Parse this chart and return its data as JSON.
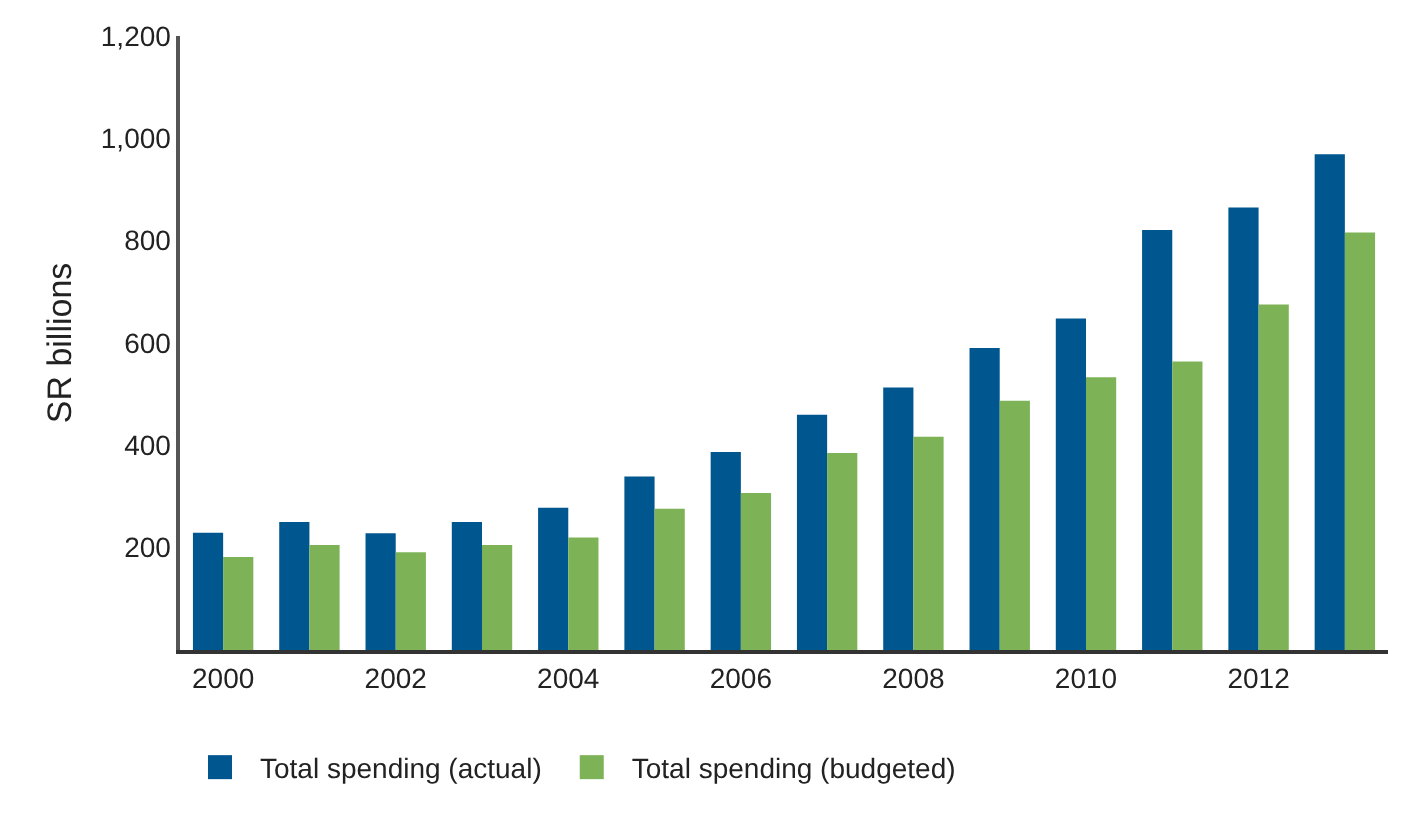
{
  "chart_data": {
    "type": "bar",
    "ylabel": "SR billions",
    "categories": [
      "2000",
      null,
      "2002",
      null,
      "2004",
      null,
      "2006",
      null,
      "2008",
      null,
      "2010",
      null,
      "2012",
      null
    ],
    "series": [
      {
        "name": "Total spending (actual)",
        "color": "#00568f",
        "values": [
          229,
          250,
          228,
          250,
          278,
          339,
          387,
          460,
          513,
          590,
          648,
          821,
          865,
          969
        ]
      },
      {
        "name": "Total spending (budgeted)",
        "color": "#7db356",
        "values": [
          182,
          205,
          191,
          205,
          220,
          276,
          307,
          385,
          417,
          487,
          533,
          564,
          675,
          816
        ]
      }
    ],
    "ylim": [
      0,
      1200
    ],
    "yticks": [
      200,
      400,
      600,
      800,
      {
        "value": 1000,
        "label": "1,000"
      },
      {
        "value": 1200,
        "label": "1,200"
      }
    ],
    "legend": "bottom"
  }
}
